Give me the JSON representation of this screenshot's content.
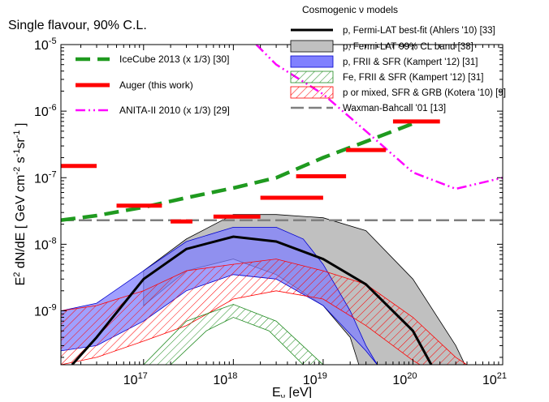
{
  "chart_data": {
    "type": "line",
    "title": "Single flavour, 90% C.L.",
    "xlabel": "Eν [eV]",
    "ylabel": "E² dN/dE [ GeV cm⁻² s⁻¹ sr⁻¹ ]",
    "x_scale": "log",
    "y_scale": "log",
    "xlim": [
      1.2e+16,
      1e+21
    ],
    "ylim": [
      1.55e-10,
      1e-05
    ],
    "x_ticks": [
      {
        "value": 1e+17,
        "base": "10",
        "exp": "17"
      },
      {
        "value": 1e+18,
        "base": "10",
        "exp": "18"
      },
      {
        "value": 1e+19,
        "base": "10",
        "exp": "19"
      },
      {
        "value": 1e+20,
        "base": "10",
        "exp": "20"
      },
      {
        "value": 1e+21,
        "base": "10",
        "exp": "21"
      }
    ],
    "y_ticks": [
      {
        "value": 1e-09,
        "base": "10",
        "exp": "-9"
      },
      {
        "value": 1e-08,
        "base": "10",
        "exp": "-8"
      },
      {
        "value": 1e-07,
        "base": "10",
        "exp": "-7"
      },
      {
        "value": 1e-06,
        "base": "10",
        "exp": "-6"
      },
      {
        "value": 1e-05,
        "base": "10",
        "exp": "-5"
      }
    ],
    "legend_left": [
      {
        "label": "IceCube 2013 (x 1/3) [30]",
        "color": "#1f9a1f",
        "style": "dashed"
      },
      {
        "label": "Auger (this work)",
        "color": "#ff0000",
        "style": "segments"
      },
      {
        "label": "ANITA-II 2010 (x 1/3) [29]",
        "color": "#ff00ff",
        "style": "dashdot"
      }
    ],
    "legend_right_title": "Cosmogenic  ν models",
    "legend_right": [
      {
        "label": "p, Fermi-LAT best-fit (Ahlers '10) [33]",
        "kind": "line",
        "color": "#000000"
      },
      {
        "label": "p, Fermi-LAT 99% CL band [33]",
        "kind": "band",
        "fill": "#c0c0c0",
        "edge": "#000000"
      },
      {
        "label": "p, FRII & SFR (Kampert '12) [31]",
        "kind": "band",
        "fill": "#8080ff",
        "edge": "#0000cc"
      },
      {
        "label": "Fe, FRII & SFR (Kampert '12) [31]",
        "kind": "hatch",
        "color": "#1f8a1f"
      },
      {
        "label": "p or mixed, SFR & GRB (Kotera '10) [9]",
        "kind": "hatch",
        "color": "#ff0000"
      },
      {
        "label": "Waxman-Bahcall '01 [13]",
        "kind": "dash",
        "color": "#7f7f7f"
      }
    ],
    "auger_limits": [
      {
        "x0": 1e+16,
        "x1": 3e+16,
        "y": 1.5e-07
      },
      {
        "x0": 5e+16,
        "x1": 1.6e+17,
        "y": 3.8e-08
      },
      {
        "x0": 2e+17,
        "x1": 3.5e+17,
        "y": 2.2e-08
      },
      {
        "x0": 6e+17,
        "x1": 2e+18,
        "y": 2.6e-08
      },
      {
        "x0": 2e+18,
        "x1": 1e+19,
        "y": 5e-08
      },
      {
        "x0": 5e+18,
        "x1": 1.8e+19,
        "y": 1.05e-07
      },
      {
        "x0": 1.8e+19,
        "x1": 5e+19,
        "y": 2.6e-07
      },
      {
        "x0": 6e+19,
        "x1": 2e+20,
        "y": 7e-07
      }
    ],
    "icecube": [
      [
        1.2e+16,
        2.3e-08
      ],
      [
        3e+16,
        2.7e-08
      ],
      [
        1e+17,
        3.6e-08
      ],
      [
        3e+17,
        5e-08
      ],
      [
        1e+18,
        7e-08
      ],
      [
        3e+18,
        1e-07
      ],
      [
        1e+19,
        2e-07
      ],
      [
        3e+19,
        3.5e-07
      ],
      [
        1e+20,
        6.5e-07
      ]
    ],
    "anita": [
      [
        1.8e+18,
        1e-05
      ],
      [
        3e+18,
        5e-06
      ],
      [
        1e+19,
        1.8e-06
      ],
      [
        3e+19,
        5e-07
      ],
      [
        1e+20,
        1.2e-07
      ],
      [
        3e+20,
        6.8e-08
      ],
      [
        1e+21,
        1e-07
      ]
    ],
    "waxman_bahcall": [
      [
        1.2e+16,
        2.3e-08
      ],
      [
        1e+21,
        2.3e-08
      ]
    ],
    "fermi_best_fit": [
      [
        1.6e+16,
        1.55e-10
      ],
      [
        3e+16,
        4e-10
      ],
      [
        1e+17,
        3e-09
      ],
      [
        3e+17,
        8.5e-09
      ],
      [
        1e+18,
        1.3e-08
      ],
      [
        3e+18,
        1.1e-08
      ],
      [
        1e+19,
        6e-09
      ],
      [
        3e+19,
        2.5e-09
      ],
      [
        1e+20,
        5e-10
      ],
      [
        1.6e+20,
        1.55e-10
      ]
    ],
    "fermi_band_upper": [
      [
        1e+17,
        4e-09
      ],
      [
        3e+17,
        1.2e-08
      ],
      [
        1e+18,
        2.8e-08
      ],
      [
        3e+18,
        2.8e-08
      ],
      [
        1e+19,
        2.5e-08
      ],
      [
        3e+19,
        1.6e-08
      ],
      [
        1e+20,
        3e-09
      ],
      [
        3e+20,
        3e-10
      ],
      [
        3.8e+20,
        1.55e-10
      ]
    ],
    "fermi_band_lower": [
      [
        1e+17,
        1.2e-09
      ],
      [
        3e+17,
        4e-09
      ],
      [
        1e+18,
        6e-09
      ],
      [
        3e+18,
        3.5e-09
      ],
      [
        1e+19,
        1.2e-09
      ],
      [
        2e+19,
        4e-10
      ],
      [
        2.5e+19,
        1.55e-10
      ]
    ],
    "kampert_p_upper": [
      [
        1.2e+16,
        1e-09
      ],
      [
        3e+16,
        1.3e-09
      ],
      [
        1e+17,
        4e-09
      ],
      [
        3e+17,
        1.1e-08
      ],
      [
        1e+18,
        1.8e-08
      ],
      [
        3e+18,
        1.8e-08
      ],
      [
        6e+18,
        1.2e-08
      ],
      [
        1e+19,
        5e-09
      ],
      [
        2e+19,
        1e-09
      ],
      [
        3e+19,
        3e-10
      ],
      [
        4e+19,
        1.55e-10
      ]
    ],
    "kampert_p_lower": [
      [
        1.2e+16,
        2.5e-10
      ],
      [
        3e+16,
        3e-10
      ],
      [
        1e+17,
        7e-10
      ],
      [
        3e+17,
        2e-09
      ],
      [
        1e+18,
        3.5e-09
      ],
      [
        3e+18,
        3e-09
      ],
      [
        1e+19,
        1.2e-09
      ],
      [
        3e+19,
        2.5e-10
      ],
      [
        4e+19,
        1.55e-10
      ]
    ],
    "kampert_fe_upper": [
      [
        1e+17,
        1.55e-10
      ],
      [
        3e+17,
        7e-10
      ],
      [
        1e+18,
        1.25e-09
      ],
      [
        3e+18,
        7e-10
      ],
      [
        1e+19,
        1.55e-10
      ]
    ],
    "kampert_fe_lower": [
      [
        2e+17,
        1.55e-10
      ],
      [
        5e+17,
        5e-10
      ],
      [
        1e+18,
        8e-10
      ],
      [
        2.5e+18,
        5e-10
      ],
      [
        6e+18,
        1.55e-10
      ]
    ],
    "kotera_upper": [
      [
        1.2e+16,
        1e-09
      ],
      [
        3e+16,
        1.2e-09
      ],
      [
        1e+17,
        2e-09
      ],
      [
        3e+17,
        4e-09
      ],
      [
        1e+18,
        5e-09
      ],
      [
        3e+18,
        6e-09
      ],
      [
        1e+19,
        4e-09
      ],
      [
        3e+19,
        2.5e-09
      ],
      [
        1e+20,
        8e-10
      ],
      [
        3e+20,
        2e-10
      ],
      [
        4e+20,
        1.55e-10
      ]
    ],
    "kotera_lower": [
      [
        1.2e+16,
        1.55e-10
      ],
      [
        3e+16,
        2e-10
      ],
      [
        1e+17,
        3.5e-10
      ],
      [
        3e+17,
        6e-10
      ],
      [
        1e+18,
        1.5e-09
      ],
      [
        3e+18,
        2e-09
      ],
      [
        1e+19,
        1.5e-09
      ],
      [
        3e+19,
        6e-10
      ],
      [
        1e+20,
        1.8e-10
      ],
      [
        1.2e+20,
        1.55e-10
      ]
    ]
  }
}
